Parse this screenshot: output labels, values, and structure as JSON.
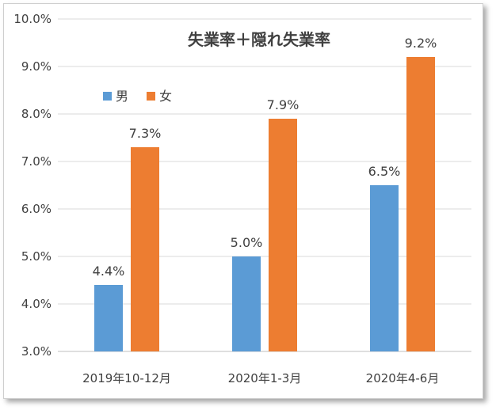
{
  "chart_data": {
    "type": "bar",
    "title": "失業率＋隠れ失業率",
    "categories": [
      "2019年10-12月",
      "2020年1-3月",
      "2020年4-6月"
    ],
    "series": [
      {
        "name": "男",
        "color": "#5b9bd5",
        "values": [
          4.4,
          5.0,
          6.5
        ],
        "labels": [
          "4.4%",
          "5.0%",
          "6.5%"
        ]
      },
      {
        "name": "女",
        "color": "#ed7d31",
        "values": [
          7.3,
          7.9,
          9.2
        ],
        "labels": [
          "7.3%",
          "7.9%",
          "9.2%"
        ]
      }
    ],
    "ylim": [
      3.0,
      10.0
    ],
    "yticks": [
      "3.0%",
      "4.0%",
      "5.0%",
      "6.0%",
      "7.0%",
      "8.0%",
      "9.0%",
      "10.0%"
    ],
    "ytick_values": [
      3,
      4,
      5,
      6,
      7,
      8,
      9,
      10
    ],
    "grid": true,
    "legend_position": "top-left"
  }
}
